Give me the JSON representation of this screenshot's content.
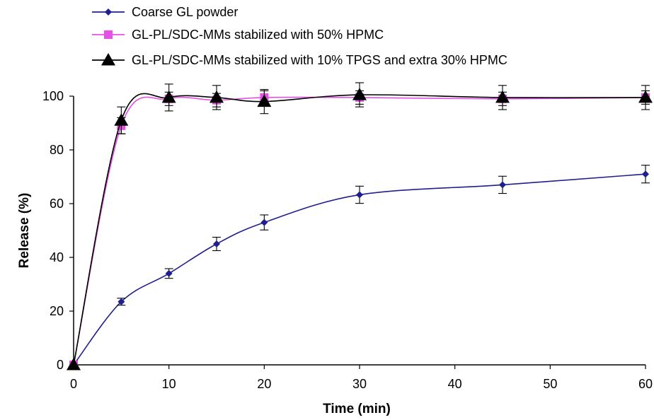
{
  "chart_data": {
    "type": "line",
    "xlabel": "Time (min)",
    "ylabel": "Release (%)",
    "xlim": [
      0,
      60
    ],
    "ylim": [
      0,
      100
    ],
    "xticks": [
      0,
      10,
      20,
      30,
      40,
      50,
      60
    ],
    "yticks": [
      0,
      20,
      40,
      60,
      80,
      100
    ],
    "grid": false,
    "legend_position": "top-left",
    "x": [
      0,
      5,
      10,
      15,
      20,
      30,
      45,
      60
    ],
    "series": [
      {
        "name": "Coarse GL powder",
        "color": "#1f1f8f",
        "marker": "diamond",
        "values": [
          0,
          23.5,
          34,
          45,
          53,
          63.3,
          67,
          71
        ],
        "errors": [
          0,
          1.3,
          1.8,
          2.5,
          2.8,
          3.2,
          3.2,
          3.3
        ]
      },
      {
        "name": "GL-PL/SDC-MMs stabilized with 50% HPMC",
        "color": "#e650e6",
        "marker": "square",
        "values": [
          0,
          89,
          99,
          98.5,
          99.5,
          99.5,
          99,
          99.5
        ],
        "errors": [
          0,
          3.0,
          2.5,
          2.5,
          2.5,
          2.5,
          2.5,
          2.5
        ]
      },
      {
        "name": "GL-PL/SDC-MMs stabilized with 10% TPGS and extra 30% HPMC",
        "color": "#000000",
        "marker": "triangle",
        "values": [
          0,
          91,
          99.5,
          99.5,
          98,
          100.5,
          99.5,
          99.5
        ],
        "errors": [
          0,
          5.0,
          5.0,
          4.5,
          4.5,
          4.5,
          4.5,
          4.5
        ]
      }
    ]
  }
}
